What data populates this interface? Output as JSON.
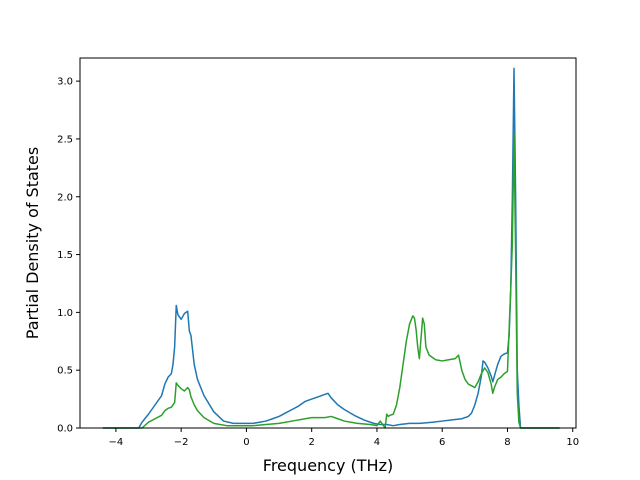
{
  "chart_data": {
    "type": "line",
    "title": "",
    "xlabel": "Frequency (THz)",
    "ylabel": "Partial Density of States",
    "xlim": [
      -5.1,
      10.1
    ],
    "ylim": [
      0.0,
      3.2
    ],
    "x_ticks": [
      -4,
      -2,
      0,
      2,
      4,
      6,
      8,
      10
    ],
    "y_ticks": [
      0.0,
      0.5,
      1.0,
      1.5,
      2.0,
      2.5,
      3.0
    ],
    "x_tick_labels": [
      "−4",
      "−2",
      "0",
      "2",
      "4",
      "6",
      "8",
      "10"
    ],
    "y_tick_labels": [
      "0.0",
      "0.5",
      "1.0",
      "1.5",
      "2.0",
      "2.5",
      "3.0"
    ],
    "grid": false,
    "legend": "none",
    "series": [
      {
        "color": "#1f77b4",
        "x": [
          -4.4,
          -3.3,
          -3.2,
          -3.0,
          -2.8,
          -2.6,
          -2.5,
          -2.4,
          -2.3,
          -2.25,
          -2.2,
          -2.15,
          -2.1,
          -2.0,
          -1.9,
          -1.8,
          -1.75,
          -1.7,
          -1.6,
          -1.5,
          -1.3,
          -1.0,
          -0.7,
          -0.4,
          -0.2,
          0.0,
          0.2,
          0.4,
          0.6,
          0.8,
          1.0,
          1.2,
          1.4,
          1.6,
          1.8,
          2.0,
          2.2,
          2.4,
          2.5,
          2.6,
          2.8,
          3.0,
          3.3,
          3.6,
          3.9,
          4.1,
          4.3,
          4.5,
          4.7,
          5.0,
          5.3,
          5.7,
          6.0,
          6.3,
          6.6,
          6.8,
          6.9,
          7.0,
          7.1,
          7.2,
          7.25,
          7.3,
          7.4,
          7.5,
          7.55,
          7.6,
          7.7,
          7.8,
          7.9,
          8.0,
          8.05,
          8.1,
          8.15,
          8.2,
          8.25,
          8.3,
          8.35,
          8.4,
          8.5,
          9.6
        ],
        "y": [
          0.0,
          0.0,
          0.05,
          0.12,
          0.2,
          0.28,
          0.38,
          0.44,
          0.47,
          0.55,
          0.7,
          1.06,
          0.98,
          0.94,
          0.99,
          1.01,
          0.84,
          0.8,
          0.55,
          0.42,
          0.28,
          0.14,
          0.06,
          0.04,
          0.04,
          0.04,
          0.04,
          0.05,
          0.06,
          0.08,
          0.1,
          0.13,
          0.16,
          0.19,
          0.23,
          0.25,
          0.27,
          0.29,
          0.3,
          0.26,
          0.2,
          0.16,
          0.11,
          0.07,
          0.04,
          0.03,
          0.03,
          0.02,
          0.03,
          0.04,
          0.04,
          0.05,
          0.06,
          0.07,
          0.08,
          0.1,
          0.13,
          0.2,
          0.3,
          0.45,
          0.58,
          0.57,
          0.52,
          0.45,
          0.4,
          0.45,
          0.55,
          0.62,
          0.64,
          0.65,
          0.8,
          1.2,
          2.0,
          3.11,
          2.0,
          0.5,
          0.2,
          0.0,
          0.0,
          0.0
        ]
      },
      {
        "color": "#2ca02c",
        "x": [
          -4.4,
          -3.2,
          -3.0,
          -2.8,
          -2.6,
          -2.5,
          -2.4,
          -2.3,
          -2.2,
          -2.15,
          -2.1,
          -2.0,
          -1.9,
          -1.8,
          -1.75,
          -1.7,
          -1.6,
          -1.5,
          -1.3,
          -1.0,
          -0.6,
          -0.2,
          0.2,
          0.6,
          1.0,
          1.4,
          1.8,
          2.0,
          2.2,
          2.4,
          2.6,
          2.8,
          3.0,
          3.4,
          3.8,
          4.0,
          4.1,
          4.2,
          4.25,
          4.3,
          4.35,
          4.4,
          4.5,
          4.6,
          4.7,
          4.8,
          4.9,
          5.0,
          5.1,
          5.15,
          5.2,
          5.25,
          5.3,
          5.4,
          5.45,
          5.5,
          5.6,
          5.8,
          6.0,
          6.2,
          6.4,
          6.5,
          6.6,
          6.7,
          6.8,
          7.0,
          7.1,
          7.2,
          7.3,
          7.4,
          7.5,
          7.55,
          7.6,
          7.7,
          7.8,
          7.9,
          8.0,
          8.1,
          8.15,
          8.2,
          8.25,
          8.3,
          8.35,
          8.4,
          8.5,
          9.6
        ],
        "y": [
          0.0,
          0.0,
          0.05,
          0.08,
          0.11,
          0.15,
          0.17,
          0.18,
          0.22,
          0.39,
          0.37,
          0.34,
          0.32,
          0.35,
          0.33,
          0.27,
          0.2,
          0.15,
          0.09,
          0.04,
          0.02,
          0.02,
          0.02,
          0.03,
          0.04,
          0.06,
          0.08,
          0.09,
          0.09,
          0.09,
          0.1,
          0.08,
          0.06,
          0.04,
          0.03,
          0.02,
          0.06,
          0.02,
          0.0,
          0.12,
          0.1,
          0.11,
          0.12,
          0.2,
          0.35,
          0.55,
          0.75,
          0.9,
          0.97,
          0.95,
          0.85,
          0.7,
          0.6,
          0.95,
          0.9,
          0.7,
          0.63,
          0.59,
          0.58,
          0.59,
          0.6,
          0.63,
          0.5,
          0.42,
          0.38,
          0.35,
          0.4,
          0.47,
          0.52,
          0.48,
          0.38,
          0.3,
          0.35,
          0.42,
          0.44,
          0.47,
          0.49,
          1.2,
          1.6,
          2.55,
          1.5,
          0.3,
          0.05,
          0.0,
          0.0,
          0.0
        ]
      }
    ]
  }
}
